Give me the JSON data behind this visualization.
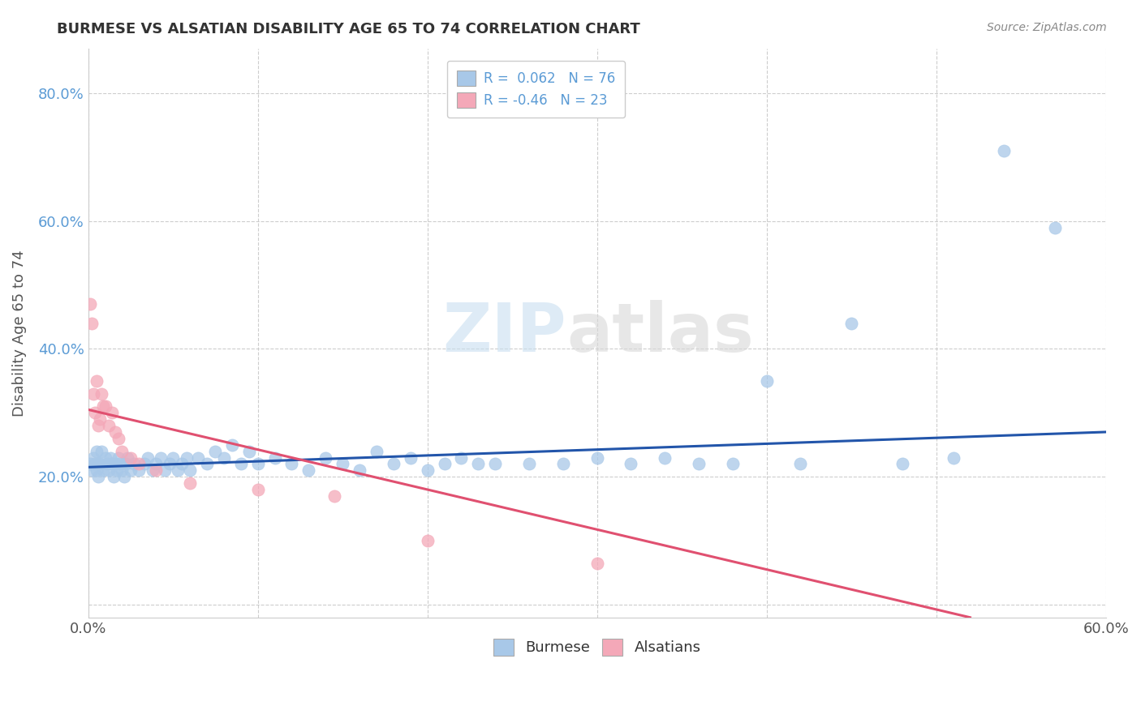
{
  "title": "BURMESE VS ALSATIAN DISABILITY AGE 65 TO 74 CORRELATION CHART",
  "source": "Source: ZipAtlas.com",
  "ylabel": "Disability Age 65 to 74",
  "xlim": [
    0.0,
    0.6
  ],
  "ylim": [
    -0.02,
    0.87
  ],
  "burmese_R": 0.062,
  "burmese_N": 76,
  "alsatian_R": -0.46,
  "alsatian_N": 23,
  "burmese_color": "#a8c8e8",
  "alsatian_color": "#f4a8b8",
  "burmese_line_color": "#2255aa",
  "alsatian_line_color": "#e05070",
  "burmese_x": [
    0.001,
    0.002,
    0.003,
    0.004,
    0.005,
    0.005,
    0.006,
    0.006,
    0.007,
    0.008,
    0.009,
    0.01,
    0.011,
    0.012,
    0.013,
    0.014,
    0.015,
    0.016,
    0.017,
    0.018,
    0.019,
    0.02,
    0.021,
    0.022,
    0.023,
    0.025,
    0.027,
    0.03,
    0.033,
    0.035,
    0.038,
    0.04,
    0.043,
    0.045,
    0.048,
    0.05,
    0.053,
    0.055,
    0.058,
    0.06,
    0.065,
    0.07,
    0.075,
    0.08,
    0.085,
    0.09,
    0.095,
    0.1,
    0.11,
    0.12,
    0.13,
    0.14,
    0.15,
    0.16,
    0.17,
    0.18,
    0.19,
    0.2,
    0.21,
    0.22,
    0.23,
    0.24,
    0.26,
    0.28,
    0.3,
    0.32,
    0.34,
    0.36,
    0.38,
    0.4,
    0.42,
    0.45,
    0.48,
    0.51,
    0.54,
    0.57
  ],
  "burmese_y": [
    0.22,
    0.21,
    0.23,
    0.22,
    0.21,
    0.24,
    0.22,
    0.2,
    0.22,
    0.24,
    0.21,
    0.23,
    0.22,
    0.21,
    0.23,
    0.22,
    0.2,
    0.22,
    0.21,
    0.23,
    0.22,
    0.21,
    0.2,
    0.22,
    0.23,
    0.21,
    0.22,
    0.21,
    0.22,
    0.23,
    0.21,
    0.22,
    0.23,
    0.21,
    0.22,
    0.23,
    0.21,
    0.22,
    0.23,
    0.21,
    0.23,
    0.22,
    0.24,
    0.23,
    0.25,
    0.22,
    0.24,
    0.22,
    0.23,
    0.22,
    0.21,
    0.23,
    0.22,
    0.21,
    0.24,
    0.22,
    0.23,
    0.21,
    0.22,
    0.23,
    0.22,
    0.22,
    0.22,
    0.22,
    0.23,
    0.22,
    0.23,
    0.22,
    0.22,
    0.35,
    0.22,
    0.44,
    0.22,
    0.23,
    0.71,
    0.59
  ],
  "alsatian_x": [
    0.001,
    0.002,
    0.003,
    0.004,
    0.005,
    0.006,
    0.007,
    0.008,
    0.009,
    0.01,
    0.012,
    0.014,
    0.016,
    0.018,
    0.02,
    0.025,
    0.03,
    0.04,
    0.06,
    0.1,
    0.145,
    0.2,
    0.3
  ],
  "alsatian_y": [
    0.47,
    0.44,
    0.33,
    0.3,
    0.35,
    0.28,
    0.29,
    0.33,
    0.31,
    0.31,
    0.28,
    0.3,
    0.27,
    0.26,
    0.24,
    0.23,
    0.22,
    0.21,
    0.19,
    0.18,
    0.17,
    0.1,
    0.065
  ],
  "burmese_line_x": [
    0.0,
    0.6
  ],
  "burmese_line_y": [
    0.215,
    0.27
  ],
  "alsatian_line_x": [
    0.0,
    0.52
  ],
  "alsatian_line_y": [
    0.305,
    -0.02
  ],
  "watermark1": "ZIP",
  "watermark2": "atlas"
}
